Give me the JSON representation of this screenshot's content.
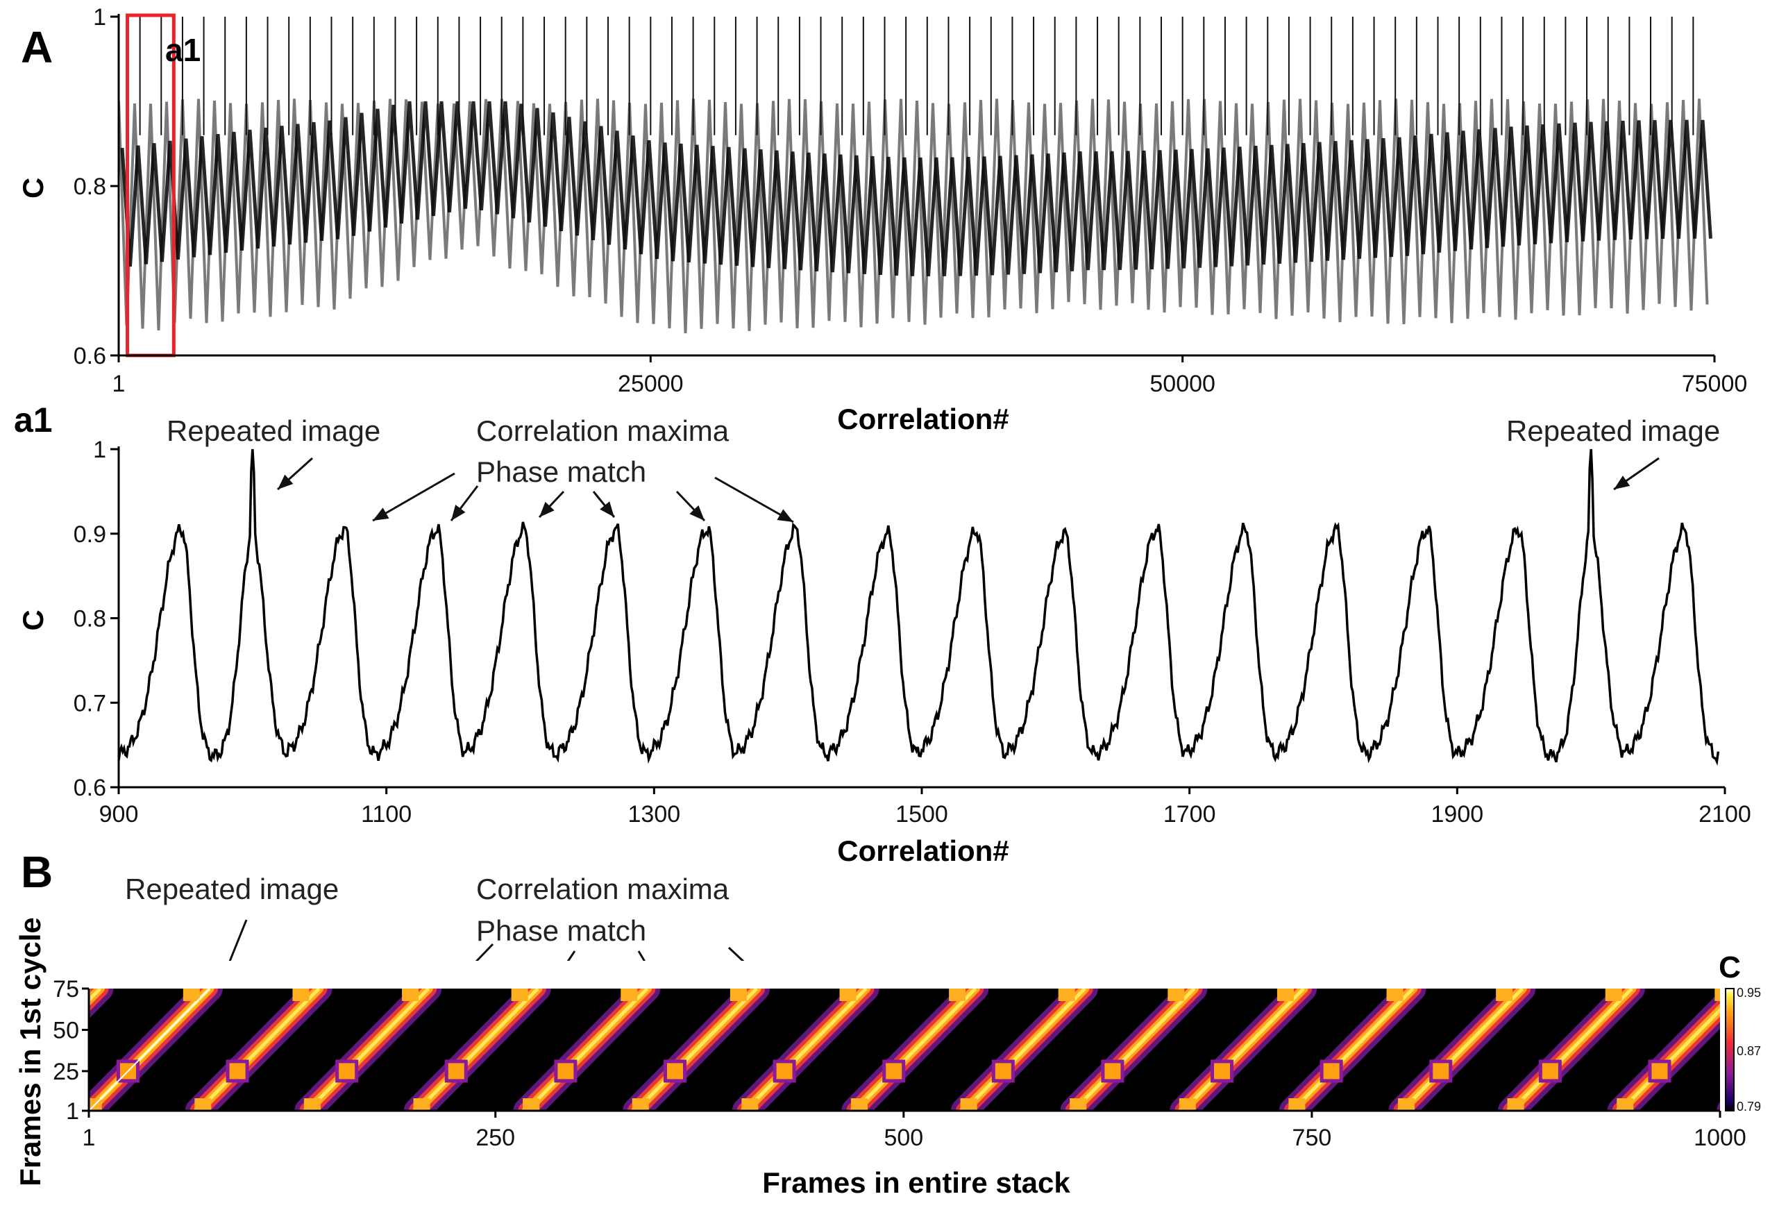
{
  "panels": {
    "A": "A",
    "a1": "a1",
    "B": "B",
    "inset": "a1"
  },
  "chart_data": [
    {
      "id": "A",
      "type": "line",
      "ylabel": "C",
      "xlabel": "Correlation#",
      "xlim": [
        1,
        75000
      ],
      "ylim": [
        0.6,
        1
      ],
      "xticks": [
        "1",
        "25000",
        "50000",
        "75000"
      ],
      "yticks": [
        "0.6",
        "0.8",
        "1"
      ],
      "repeated_image_period": 1000,
      "phase_match_period": 67,
      "series_color_light": "#7a7a7a",
      "series_color_dark": "#000000",
      "highlight_color": "#e8262a",
      "series": [
        {
          "x": [
            1,
            10000,
            16000,
            25000,
            37000,
            45000,
            60000,
            75000
          ],
          "max": [
            0.9,
            0.9,
            0.9,
            0.9,
            0.9,
            0.9,
            0.9,
            0.9
          ],
          "min": [
            0.63,
            0.66,
            0.73,
            0.63,
            0.64,
            0.66,
            0.64,
            0.66
          ]
        }
      ]
    },
    {
      "id": "a1",
      "type": "line",
      "ylabel": "C",
      "xlabel": "Correlation#",
      "xlim": [
        900,
        2100
      ],
      "ylim": [
        0.6,
        1
      ],
      "xticks": [
        "900",
        "1100",
        "1300",
        "1500",
        "1700",
        "1900",
        "2100"
      ],
      "yticks": [
        "0.6",
        "0.7",
        "0.8",
        "0.9",
        "1"
      ],
      "peaks_x": [
        947,
        1000,
        1069,
        1138,
        1203,
        1272,
        1340,
        1406,
        1475,
        1541,
        1607,
        1676,
        1742,
        1810,
        1878,
        1946,
        2000,
        2070
      ],
      "peaks_y": [
        0.905,
        1.0,
        0.905,
        0.905,
        0.905,
        0.905,
        0.905,
        0.905,
        0.9,
        0.903,
        0.9,
        0.905,
        0.905,
        0.905,
        0.905,
        0.905,
        1.0,
        0.905
      ],
      "baseline": 0.635,
      "annotations": {
        "repeated_left": "Repeated image",
        "repeated_right": "Repeated image",
        "maxima_line1": "Correlation maxima",
        "maxima_line2": "Phase match"
      }
    },
    {
      "id": "B",
      "type": "heatmap",
      "xlabel": "Frames in entire stack",
      "ylabel": "Frames in 1st cycle",
      "xlim": [
        1,
        1000
      ],
      "ylim": [
        1,
        75
      ],
      "xticks": [
        "1",
        "250",
        "500",
        "750",
        "1000"
      ],
      "yticks": [
        "1",
        "25",
        "50",
        "75"
      ],
      "period": 67,
      "colorbar": {
        "label": "C",
        "min": "0.79",
        "mid": "0.87",
        "max": "0.95"
      },
      "annotations": {
        "repeated": "Repeated image",
        "maxima_line1": "Correlation maxima",
        "maxima_line2": "Phase match"
      }
    }
  ]
}
